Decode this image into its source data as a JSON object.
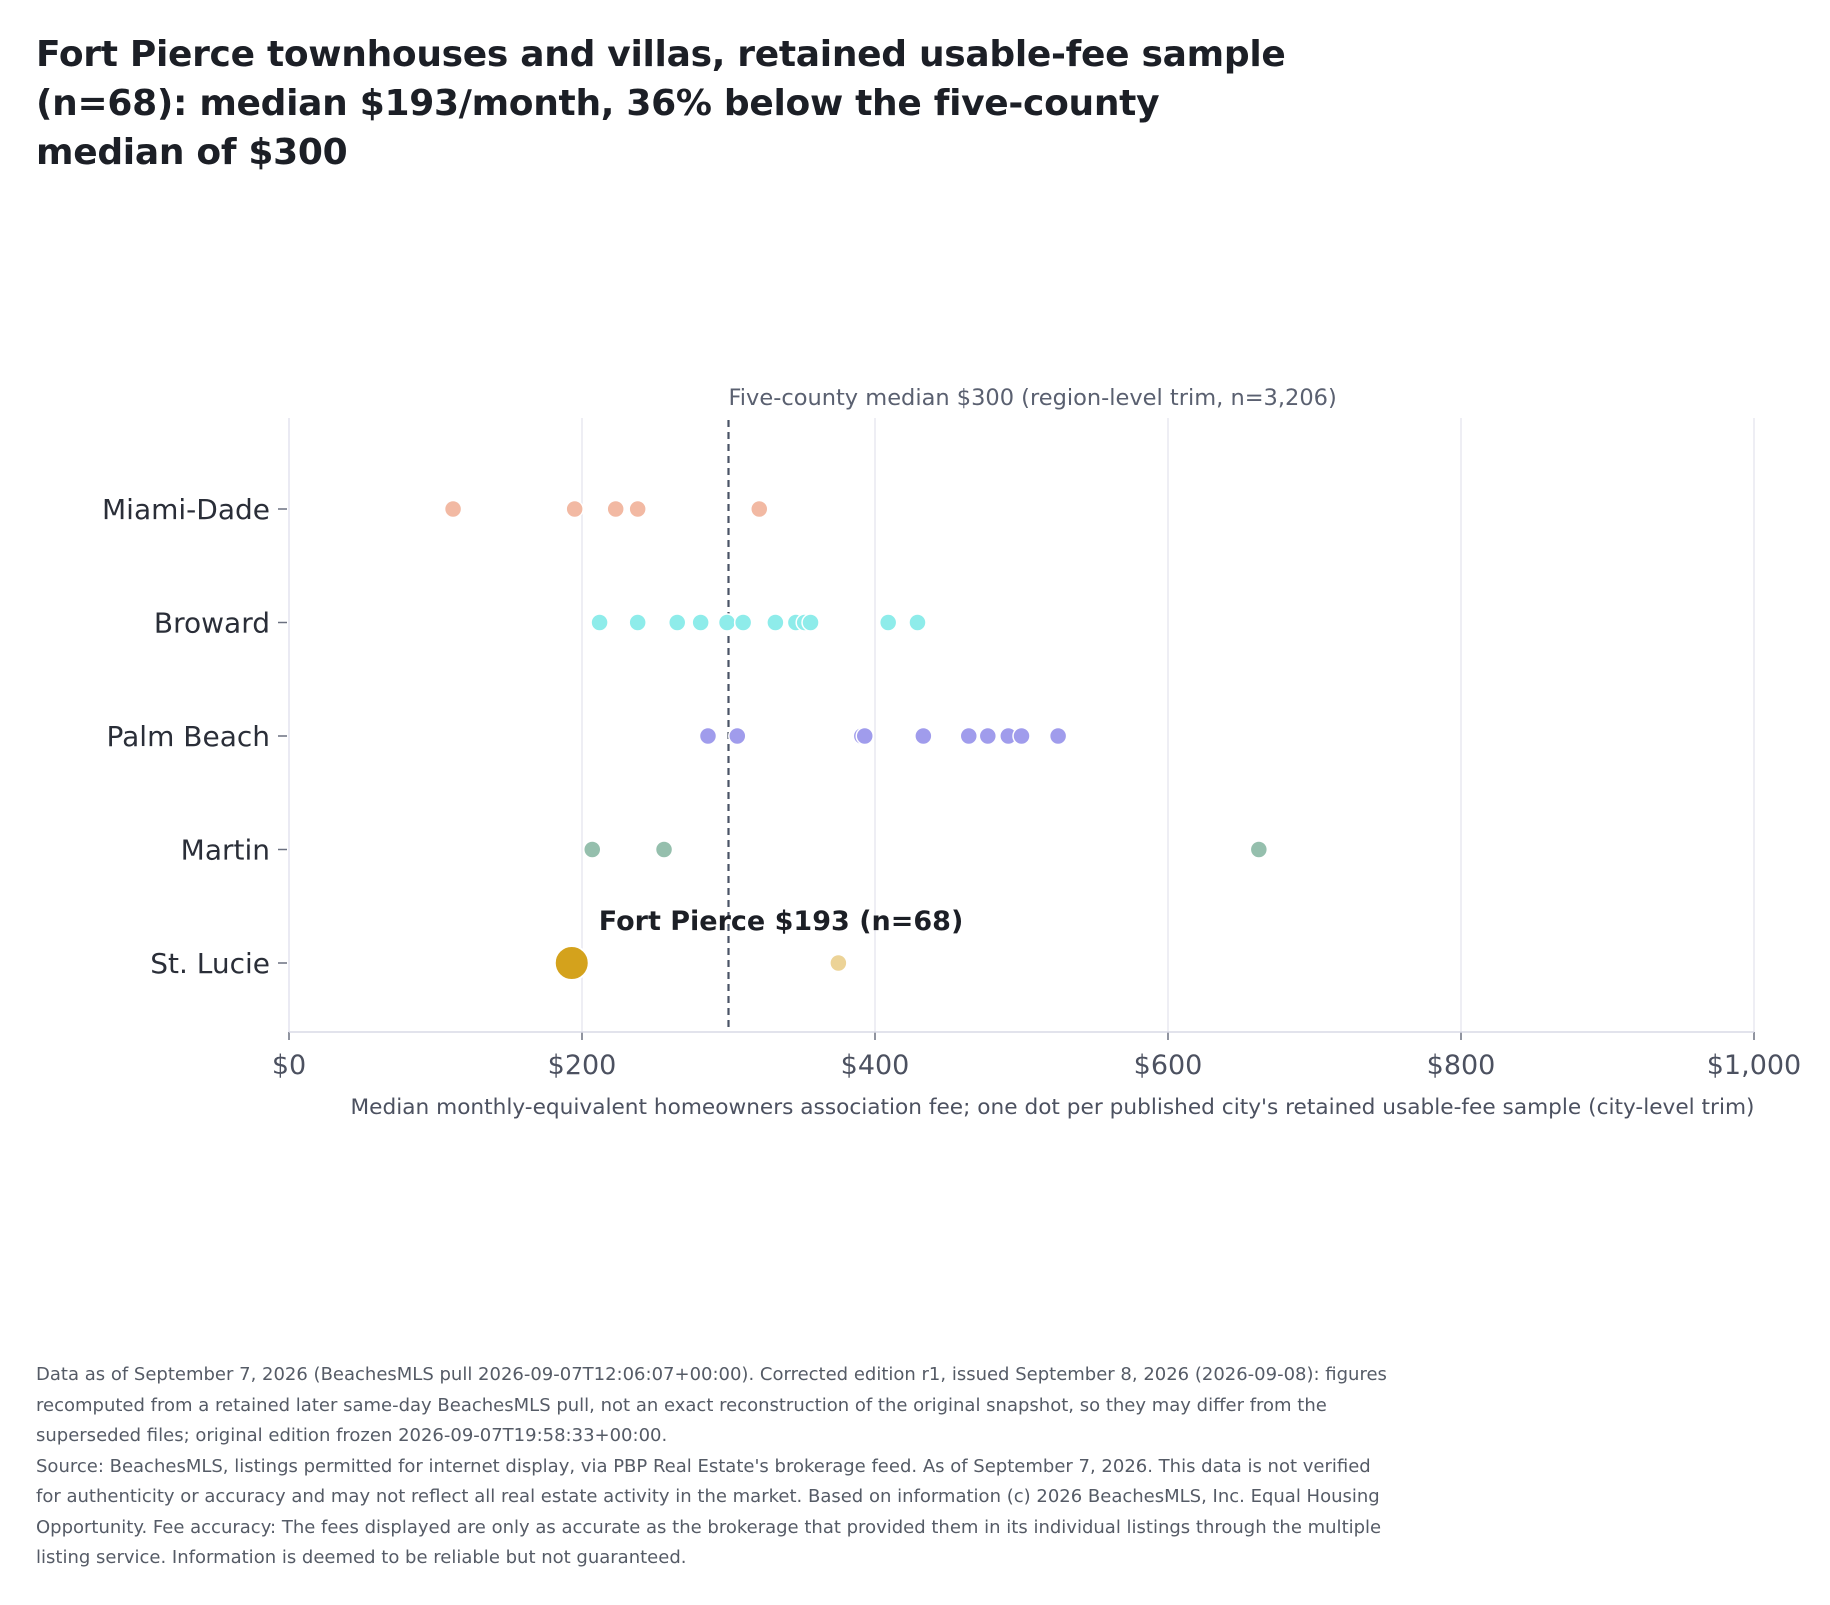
{
  "title": "Fort Pierce townhouses and villas, retained usable-fee sample (n=68): median $193/month, 36% below the five-county median of $300",
  "footnote": {
    "edition": "Data as of September 7, 2026 (BeachesMLS pull 2026-09-07T12:06:07+00:00). Corrected edition r1, issued September 8, 2026 (2026-09-08): figures recomputed from a retained later same-day BeachesMLS pull, not an exact reconstruction of the original snapshot, so they may differ from the superseded files; original edition frozen 2026-09-07T19:58:33+00:00.",
    "source": "Source: BeachesMLS, listings permitted for internet display, via PBP Real Estate's brokerage feed. As of September 7, 2026. This data is not verified for authenticity or accuracy and may not reflect all real estate activity in the market. Based on information (c) 2026 BeachesMLS, Inc. Equal Housing Opportunity. Fee accuracy: The fees displayed are only as accurate as the brokerage that provided them in its individual listings through the multiple listing service. Information is deemed to be reliable but not guaranteed."
  },
  "chart_data": {
    "type": "scatter",
    "xlabel": "Median monthly-equivalent homeowners association fee; one dot per published city's retained usable-fee sample (city-level trim)",
    "xlim": [
      0,
      1000
    ],
    "xticks": [
      0,
      200,
      400,
      600,
      800,
      1000
    ],
    "xtick_labels": [
      "$0",
      "$200",
      "$400",
      "$600",
      "$800",
      "$1,000"
    ],
    "categories": [
      "Miami-Dade",
      "Broward",
      "Palm Beach",
      "Martin",
      "St. Lucie"
    ],
    "grid": "vertical",
    "series": [
      {
        "name": "Miami-Dade",
        "color": "#f2b9a3",
        "values": [
          112,
          195,
          223,
          238,
          321
        ]
      },
      {
        "name": "Broward",
        "color": "#8eecea",
        "values": [
          212,
          238,
          265,
          281,
          299,
          310,
          332,
          346,
          352,
          356,
          409,
          429
        ]
      },
      {
        "name": "Palm Beach",
        "color": "#a09cec",
        "values": [
          286,
          306,
          391,
          393,
          433,
          464,
          477,
          491,
          500,
          525
        ]
      },
      {
        "name": "Martin",
        "color": "#95bfad",
        "values": [
          207,
          256,
          662
        ]
      },
      {
        "name": "St. Lucie",
        "color": "#ecd397",
        "values": [
          375
        ]
      }
    ],
    "reference_line": {
      "value": 300,
      "label": "Five-county median $300 (region-level trim, n=3,206)",
      "style": "dashed",
      "color": "#4a5366"
    },
    "highlight": {
      "category": "St. Lucie",
      "value": 193,
      "label": "Fort Pierce $193 (n=68)",
      "color": "#d4a21c"
    }
  }
}
